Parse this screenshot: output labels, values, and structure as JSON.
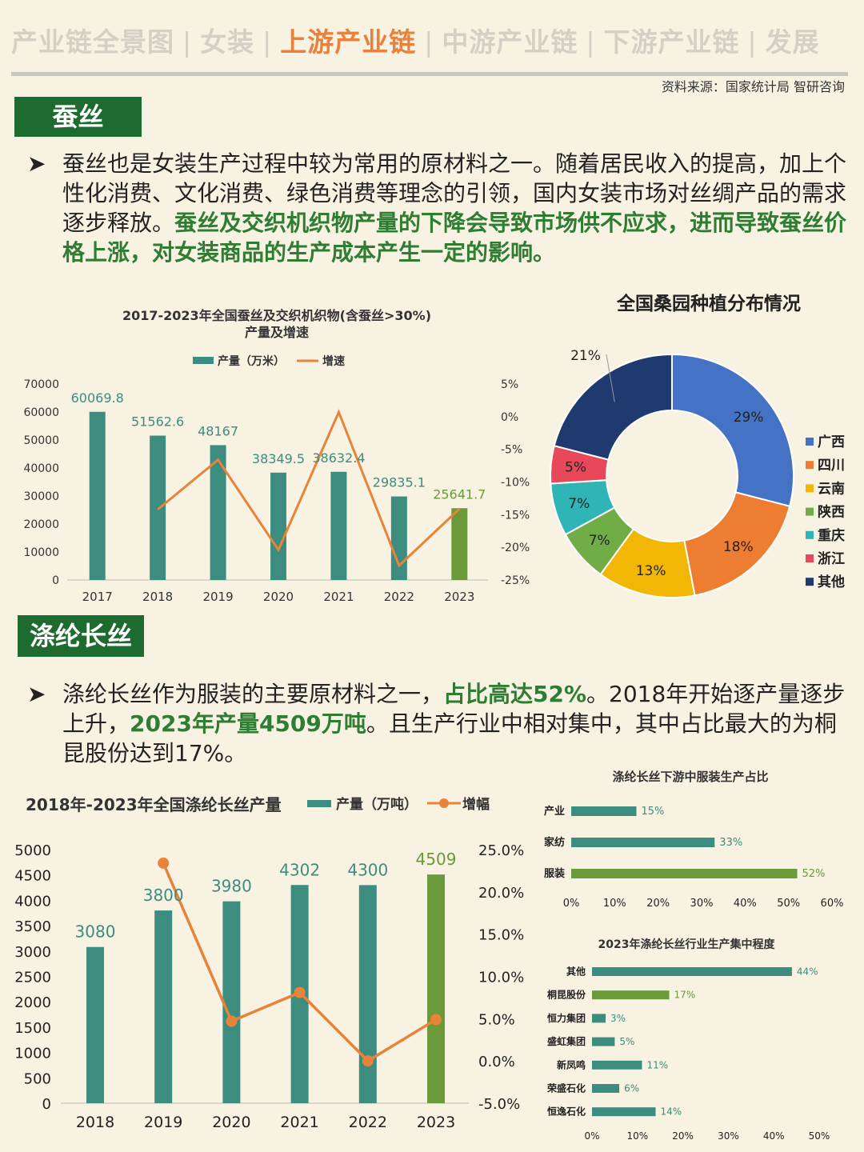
{
  "nav": {
    "items": [
      "产业链全景图",
      "女装",
      "上游产业链",
      "中游产业链",
      "下游产业链",
      "发展"
    ],
    "active_index": 2
  },
  "source": "资料来源：国家统计局  智研咨询",
  "section1": {
    "label": "蚕丝",
    "text_normal": "蚕丝也是女装生产过程中较为常用的原材料之一。随着居民收入的提高，加上个性化消费、文化消费、绿色消费等理念的引领，国内女装市场对丝绸产品的需求逐步释放。",
    "text_highlight": "蚕丝及交织机织物产量的下降会导致市场供不应求，进而导致蚕丝价格上涨，对女装商品的生产成本产生一定的影响。"
  },
  "section2": {
    "label": "涤纶长丝",
    "text_a": "涤纶长丝作为服装的主要原材料之一，",
    "text_b": "占比高达52%",
    "text_c": "。2018年开始逐产量逐步上升，",
    "text_d": "2023年产量4509万吨",
    "text_e": "。且生产行业中相对集中，其中占比最大的为桐昆股份达到17%。"
  },
  "colors": {
    "bar": "#3d8c80",
    "bar_last": "#6a9a3a",
    "line": "#e8833a",
    "section_bg": "#1d6b2f",
    "highlight": "#2e7d32",
    "nav_active": "#e8803e"
  },
  "chart_data": [
    {
      "type": "bar",
      "title": "2017-2023年全国蚕丝及交织机织物(含蚕丝>30%)",
      "subtitle": "产量及增速",
      "legend": [
        "产量（万米）",
        "增速"
      ],
      "categories": [
        "2017",
        "2018",
        "2019",
        "2020",
        "2021",
        "2022",
        "2023"
      ],
      "series": [
        {
          "name": "产量（万米）",
          "values": [
            60069.8,
            51562.6,
            48167,
            38349.5,
            38632.4,
            29835.1,
            25641.7
          ]
        },
        {
          "name": "增速",
          "values": [
            null,
            -14.2,
            -6.6,
            -20.4,
            0.7,
            -22.8,
            -14.1
          ],
          "axis": "right"
        }
      ],
      "value_labels": [
        "60069.8",
        "51562.6",
        "48167",
        "38349.5",
        "38632.4",
        "29835.1",
        "25641.7"
      ],
      "y_left_ticks": [
        "70000",
        "60000",
        "50000",
        "40000",
        "30000",
        "20000",
        "10000",
        "0"
      ],
      "y_right_ticks": [
        "5%",
        "0%",
        "-5%",
        "-10%",
        "-15%",
        "-20%",
        "-25%"
      ],
      "ylim_left": [
        0,
        70000
      ],
      "ylim_right": [
        -25,
        5
      ]
    },
    {
      "type": "pie",
      "title": "全国桑园种植分布情况",
      "labels": [
        "广西",
        "四川",
        "云南",
        "陕西",
        "重庆",
        "浙江",
        "其他"
      ],
      "values": [
        29,
        18,
        13,
        7,
        7,
        5,
        21
      ],
      "value_labels": [
        "29%",
        "18%",
        "13%",
        "7%",
        "7%",
        "5%",
        "21%"
      ],
      "colors": [
        "#4472c4",
        "#ed7d31",
        "#f2b705",
        "#70ad47",
        "#2fb5b5",
        "#e8485a",
        "#1f3a6e"
      ]
    },
    {
      "type": "bar",
      "title": "2018年-2023年全国涤纶长丝产量",
      "legend": [
        "产量（万吨）",
        "增幅"
      ],
      "categories": [
        "2018",
        "2019",
        "2020",
        "2021",
        "2022",
        "2023"
      ],
      "series": [
        {
          "name": "产量（万吨）",
          "values": [
            3080,
            3800,
            3980,
            4302,
            4300,
            4509
          ]
        },
        {
          "name": "增幅",
          "values": [
            null,
            23.4,
            4.7,
            8.1,
            0.0,
            4.9
          ],
          "axis": "right"
        }
      ],
      "value_labels": [
        "3080",
        "3800",
        "3980",
        "4302",
        "4300",
        "4509"
      ],
      "y_left_ticks": [
        "5000",
        "4500",
        "4000",
        "3500",
        "3000",
        "2500",
        "2000",
        "1500",
        "1000",
        "500",
        "0"
      ],
      "y_right_ticks": [
        "25.0%",
        "20.0%",
        "15.0%",
        "10.0%",
        "5.0%",
        "0.0%",
        "-5.0%"
      ],
      "ylim_left": [
        0,
        5000
      ],
      "ylim_right": [
        -5,
        25
      ]
    },
    {
      "type": "bar",
      "orientation": "horizontal",
      "title": "涤纶长丝下游中服装生产占比",
      "categories": [
        "产业",
        "家纺",
        "服装"
      ],
      "values": [
        15,
        33,
        52
      ],
      "value_labels": [
        "15%",
        "33%",
        "52%"
      ],
      "x_ticks": [
        "0%",
        "10%",
        "20%",
        "30%",
        "40%",
        "50%",
        "60%"
      ],
      "xlim": [
        0,
        60
      ]
    },
    {
      "type": "bar",
      "orientation": "horizontal",
      "title": "2023年涤纶长丝行业生产集中程度",
      "categories": [
        "其他",
        "桐昆股份",
        "恒力集团",
        "盛虹集团",
        "新凤鸣",
        "荣盛石化",
        "恒逸石化"
      ],
      "values": [
        44,
        17,
        3,
        5,
        11,
        6,
        14
      ],
      "value_labels": [
        "44%",
        "17%",
        "3%",
        "5%",
        "11%",
        "6%",
        "14%"
      ],
      "x_ticks": [
        "0%",
        "10%",
        "20%",
        "30%",
        "40%",
        "50%"
      ],
      "xlim": [
        0,
        50
      ]
    }
  ]
}
